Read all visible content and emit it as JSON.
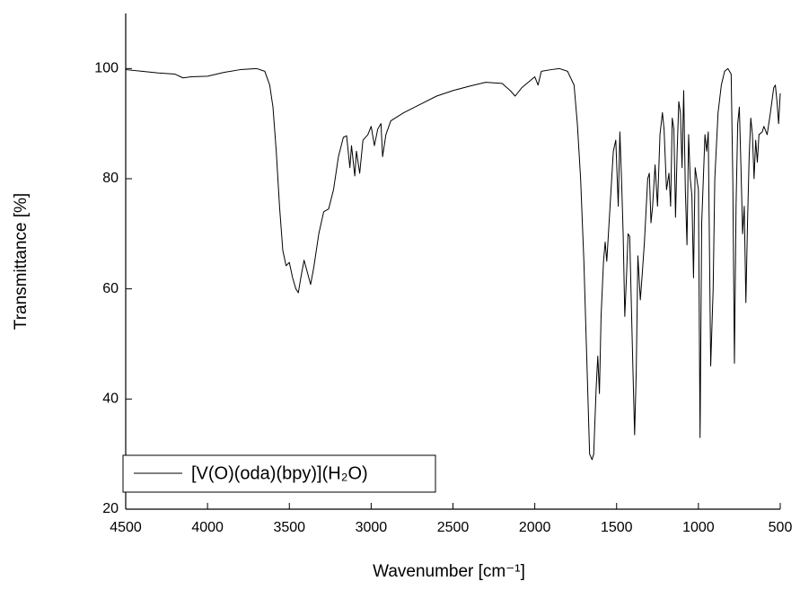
{
  "chart_data": {
    "type": "line",
    "xlabel": "Wavenumber [cm⁻¹]",
    "ylabel": "Transmittance [%]",
    "xlim": [
      4500,
      500
    ],
    "ylim": [
      20,
      110
    ],
    "xticks": [
      4500,
      4000,
      3500,
      3000,
      2500,
      2000,
      1500,
      1000,
      500
    ],
    "yticks": [
      20,
      40,
      60,
      80,
      100
    ],
    "grid": false,
    "legend": "lower left",
    "x": [
      4500,
      4400,
      4300,
      4200,
      4150,
      4100,
      4000,
      3900,
      3800,
      3700,
      3650,
      3620,
      3600,
      3580,
      3560,
      3540,
      3520,
      3500,
      3480,
      3460,
      3445,
      3430,
      3410,
      3390,
      3370,
      3350,
      3320,
      3290,
      3260,
      3230,
      3200,
      3170,
      3150,
      3130,
      3120,
      3100,
      3090,
      3070,
      3050,
      3020,
      3000,
      2980,
      2960,
      2940,
      2930,
      2910,
      2880,
      2800,
      2700,
      2600,
      2500,
      2400,
      2300,
      2200,
      2150,
      2120,
      2080,
      2000,
      1980,
      1960,
      1900,
      1850,
      1800,
      1760,
      1740,
      1720,
      1700,
      1680,
      1665,
      1650,
      1640,
      1625,
      1615,
      1605,
      1595,
      1580,
      1570,
      1560,
      1540,
      1520,
      1505,
      1490,
      1480,
      1470,
      1460,
      1450,
      1440,
      1430,
      1420,
      1400,
      1390,
      1380,
      1370,
      1355,
      1345,
      1330,
      1310,
      1300,
      1290,
      1280,
      1265,
      1250,
      1235,
      1220,
      1210,
      1195,
      1180,
      1170,
      1160,
      1150,
      1140,
      1130,
      1120,
      1110,
      1100,
      1090,
      1080,
      1070,
      1060,
      1050,
      1040,
      1030,
      1020,
      1000,
      990,
      980,
      970,
      960,
      950,
      940,
      925,
      910,
      900,
      880,
      860,
      840,
      820,
      800,
      790,
      780,
      770,
      760,
      750,
      740,
      730,
      720,
      710,
      700,
      690,
      680,
      670,
      660,
      650,
      640,
      630,
      610,
      600,
      580,
      560,
      540,
      530,
      520,
      510,
      500
    ],
    "series": [
      {
        "name": "[V(O)(oda)(bpy)](H₂O)",
        "color": "#000000",
        "values": [
          99.8,
          99.5,
          99.2,
          99.0,
          98.3,
          98.5,
          98.6,
          99.3,
          99.8,
          100,
          99.5,
          97,
          93,
          85,
          75,
          67,
          64.2,
          64.8,
          62,
          60,
          59.3,
          62,
          65.2,
          63,
          60.8,
          64,
          70,
          74,
          74.5,
          78,
          84,
          87.5,
          87.8,
          82,
          86,
          80.5,
          85,
          81,
          87,
          88,
          89.5,
          86,
          89,
          90,
          84,
          88,
          90.5,
          92,
          93.5,
          95,
          96,
          96.8,
          97.5,
          97.3,
          96,
          95,
          96.5,
          98.5,
          97,
          99.5,
          99.8,
          100,
          99.5,
          97,
          90,
          80,
          65,
          45,
          30,
          29,
          30,
          42,
          47.8,
          41,
          55,
          65,
          68.5,
          65,
          75,
          85,
          87,
          75,
          88.5,
          80,
          70,
          55,
          62,
          70,
          69.5,
          45,
          33.5,
          45,
          66,
          58,
          62,
          68.5,
          80,
          81,
          72,
          75,
          82.5,
          75,
          88,
          92,
          89,
          78,
          81,
          75,
          91,
          89,
          73,
          85,
          94,
          92,
          82,
          96,
          78,
          68,
          88,
          80,
          77,
          62,
          82,
          78,
          33,
          72,
          80,
          88,
          85,
          88.5,
          46,
          60,
          80,
          92,
          97,
          99.5,
          100,
          99,
          80,
          46.5,
          75,
          90,
          93,
          82,
          70,
          75,
          57.5,
          72,
          84,
          91,
          88,
          80,
          87,
          83,
          88,
          88.5,
          89.5,
          88,
          92,
          96.5,
          97,
          94,
          90,
          95.5
        ]
      }
    ]
  }
}
